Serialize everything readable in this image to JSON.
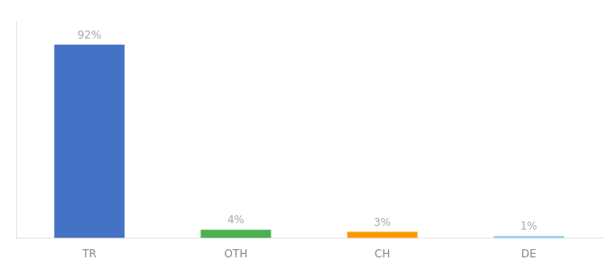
{
  "chart_data": {
    "type": "bar",
    "categories": [
      "TR",
      "OTH",
      "CH",
      "DE"
    ],
    "values": [
      92,
      4,
      3,
      1
    ],
    "value_labels": [
      "92%",
      "4%",
      "3%",
      "1%"
    ],
    "colors": [
      "#4472c4",
      "#4caf50",
      "#ff9800",
      "#87ceeb"
    ],
    "ylim": [
      0,
      103
    ],
    "grid": false,
    "data_labels": true,
    "tick_labels": "x"
  }
}
